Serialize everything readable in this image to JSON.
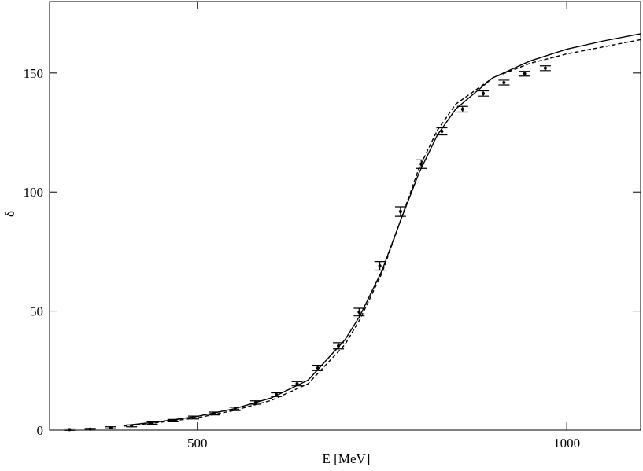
{
  "chart_data": {
    "type": "scatter-lines",
    "x_label": "E [MeV]",
    "y_label": "δ",
    "xlim": [
      300,
      1100
    ],
    "ylim": [
      0,
      180
    ],
    "xticks": [
      500,
      1000
    ],
    "yticks": [
      0,
      50,
      100,
      150
    ],
    "points": {
      "color": "#000",
      "x": [
        327,
        355,
        383,
        411,
        439,
        467,
        495,
        523,
        551,
        579,
        607,
        635,
        663,
        691,
        719,
        747,
        775,
        803,
        831,
        859,
        887,
        915,
        943,
        971
      ],
      "values": [
        0.2,
        0.4,
        1.0,
        1.8,
        3.0,
        4.0,
        5.3,
        7.0,
        8.9,
        11.6,
        14.9,
        19.5,
        26.1,
        35.4,
        49.6,
        69.0,
        91.8,
        111.7,
        125.5,
        134.8,
        141.4,
        146.0,
        149.7,
        152.0
      ],
      "errors": [
        0.3,
        0.3,
        0.4,
        0.4,
        0.5,
        0.5,
        0.6,
        0.6,
        0.7,
        0.7,
        0.8,
        0.9,
        1.1,
        1.3,
        1.6,
        1.8,
        2.0,
        1.8,
        1.5,
        1.2,
        1.1,
        1.0,
        1.0,
        1.0
      ]
    },
    "series": [
      {
        "color": "#000",
        "dash": false,
        "x": [
          400,
          450,
          500,
          550,
          600,
          650,
          700,
          720,
          750,
          775,
          800,
          825,
          850,
          900,
          950,
          1000,
          1050,
          1100
        ],
        "values": [
          1.9,
          3.6,
          5.8,
          9.0,
          13.5,
          21,
          38,
          48,
          67,
          88,
          108,
          124,
          135,
          148,
          155,
          160,
          163.5,
          166.5
        ]
      },
      {
        "color": "#000",
        "dash": true,
        "x": [
          400,
          450,
          500,
          550,
          600,
          650,
          700,
          720,
          750,
          775,
          800,
          825,
          850,
          900,
          950,
          1000,
          1050,
          1100
        ],
        "values": [
          1.7,
          3.3,
          5.2,
          8.3,
          12.5,
          19.5,
          36,
          46.5,
          66,
          88,
          110,
          126,
          137,
          148,
          154,
          158,
          161,
          164
        ]
      }
    ]
  }
}
